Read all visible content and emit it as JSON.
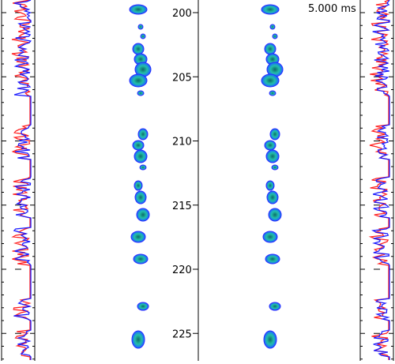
{
  "time_readout": "5.000 ms",
  "center_axis": {
    "ticks": [
      {
        "value": 200,
        "label": "200"
      },
      {
        "value": 205,
        "label": "205"
      },
      {
        "value": 210,
        "label": "210"
      },
      {
        "value": 215,
        "label": "215"
      },
      {
        "value": 220,
        "label": "220"
      },
      {
        "value": 225,
        "label": "225"
      }
    ]
  },
  "colors": {
    "trace_a": "#ff2020",
    "trace_b": "#1a1aff",
    "blob_core": "#1fb8a8",
    "blob_rim": "#1a3aff",
    "blob_dark": "#0a2a5a",
    "axis": "#000000"
  },
  "icons": [
    "spectrogram-panel",
    "waveform-trace"
  ]
}
